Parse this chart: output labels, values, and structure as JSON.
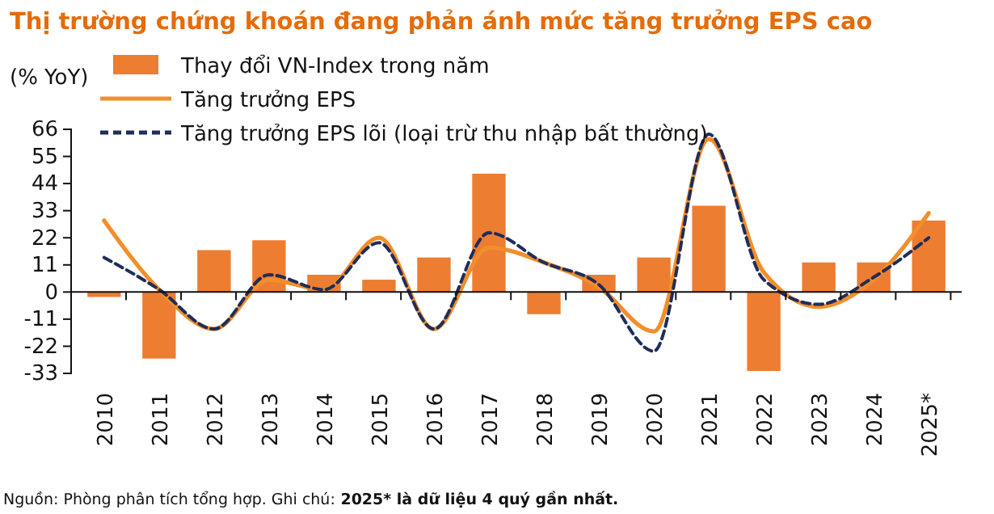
{
  "chart_data": {
    "type": "bar",
    "title": "Thị trường chứng khoán đang phản ánh mức tăng trưởng EPS cao",
    "ylabel": "(% YoY)",
    "categories": [
      "2010",
      "2011",
      "2012",
      "2013",
      "2014",
      "2015",
      "2016",
      "2017",
      "2018",
      "2019",
      "2020",
      "2021",
      "2022",
      "2023",
      "2024",
      "2025*"
    ],
    "series": [
      {
        "name": "Thay đổi VN-Index trong năm",
        "type": "bar",
        "color": "#ed7d31",
        "values": [
          -2,
          -27,
          17,
          21,
          7,
          5,
          14,
          48,
          -9,
          7,
          14,
          35,
          -32,
          12,
          12,
          29
        ]
      },
      {
        "name": "Tăng trưởng EPS",
        "type": "line",
        "color": "#f28e2b",
        "line_style": "solid",
        "values": [
          29,
          1,
          -15,
          5,
          1,
          22,
          -15,
          18,
          12,
          2,
          -16,
          62,
          8,
          -6,
          5,
          32
        ]
      },
      {
        "name": "Tăng trưởng EPS lõi (loại trừ thu nhập bất thường)",
        "type": "line",
        "color": "#1f2d5a",
        "line_style": "dashed",
        "values": [
          14,
          1,
          -15,
          7,
          1,
          20,
          -15,
          24,
          12,
          3,
          -24,
          64,
          5,
          -5,
          6,
          22
        ]
      }
    ],
    "ylim": [
      -33,
      66
    ],
    "yticks": [
      -33,
      -22,
      -11,
      0,
      11,
      22,
      33,
      44,
      55,
      66
    ],
    "legend": "top left",
    "annotations": [
      "Nguồn: Phòng phân tích tổng hợp. Ghi chú:",
      "2025* là dữ liệu 4 quý gần nhất."
    ]
  }
}
